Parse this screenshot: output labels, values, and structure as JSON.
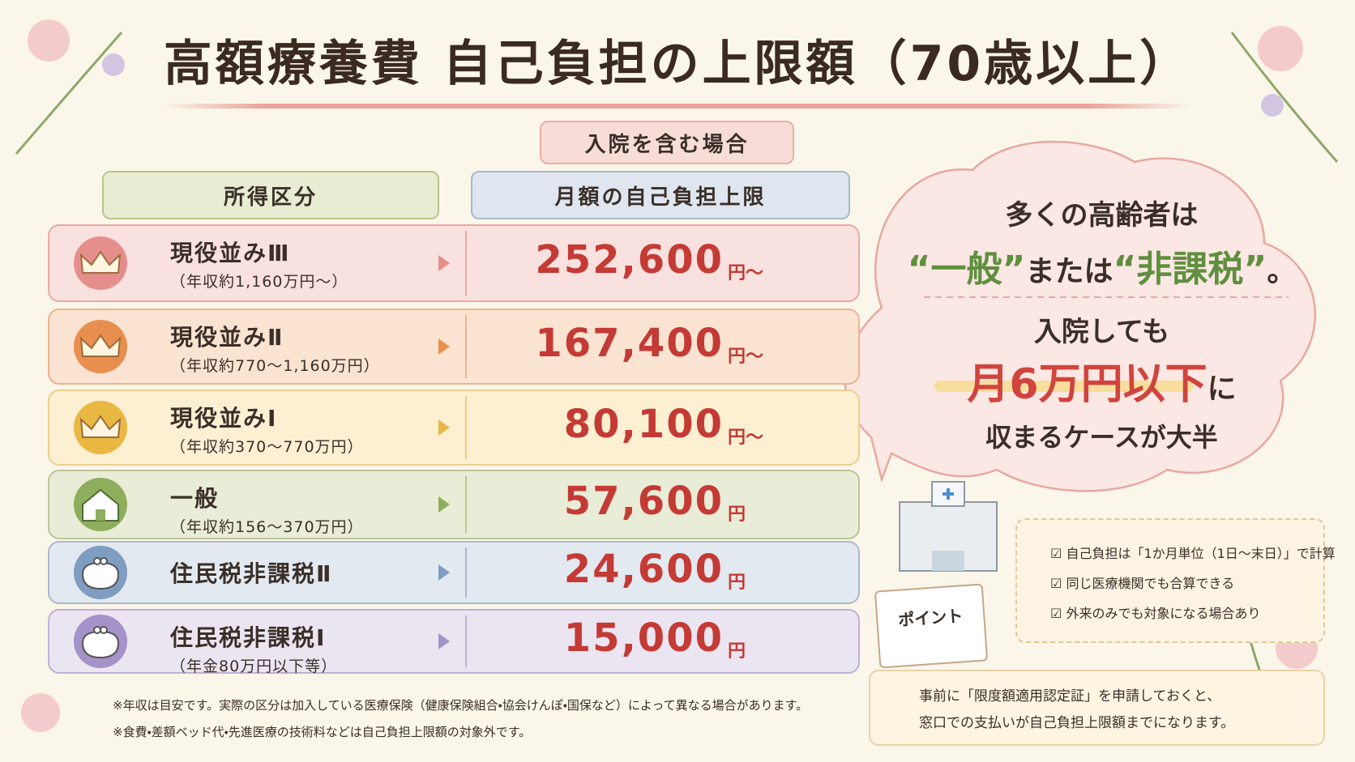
{
  "title": "高額療養費 自己負担の上限額（70歳以上）",
  "subtitle": "入院を含む場合",
  "table": {
    "headers": [
      "所得区分",
      "月額の自己負担上限"
    ],
    "rows": [
      {
        "category": "現役並みⅢ",
        "note": "（年収約1,160万円～）",
        "amount": "252,600",
        "unit": "円～"
      },
      {
        "category": "現役並みⅡ",
        "note": "（年収約770～1,160万円）",
        "amount": "167,400",
        "unit": "円～"
      },
      {
        "category": "現役並みⅠ",
        "note": "（年収約370～770万円）",
        "amount": "80,100",
        "unit": "円～"
      },
      {
        "category": "一般",
        "note": "（年収約156～370万円）",
        "amount": "57,600",
        "unit": "円"
      },
      {
        "category": "住民税非課税Ⅱ",
        "amount": "24,600",
        "unit": "円"
      },
      {
        "category": "住民税非課税Ⅰ",
        "note": "（年金80万円以下等）",
        "amount": "15,000",
        "unit": "円"
      }
    ]
  },
  "callout": {
    "line1": "多くの高齢者は",
    "line2": [
      "“一般”",
      "または",
      "“非課税”",
      "。"
    ],
    "line3": "入院しても",
    "line4": [
      "月6万円以下",
      "に"
    ],
    "line5": "収まるケースが大半"
  },
  "points": {
    "badge": "ポイント",
    "items": [
      "自己負担は「1か月単位（1日～末日）」で計算",
      "同じ医療機関でも合算できる",
      "外来のみでも対象になる場合あり"
    ]
  },
  "tip": [
    "事前に「限度額適用認定証」を申請しておくと、",
    "窓口での支払いが自己負担上限額までになります。"
  ],
  "footnotes": [
    "※年収は目安です。実際の区分は加入している医療保険（健康保険組合・協会けんぽ・国保など）によって異なる場合があります。",
    "※食費・差額ベッド代・先進医療の技術料などは自己負担上限額の対象外です。"
  ]
}
